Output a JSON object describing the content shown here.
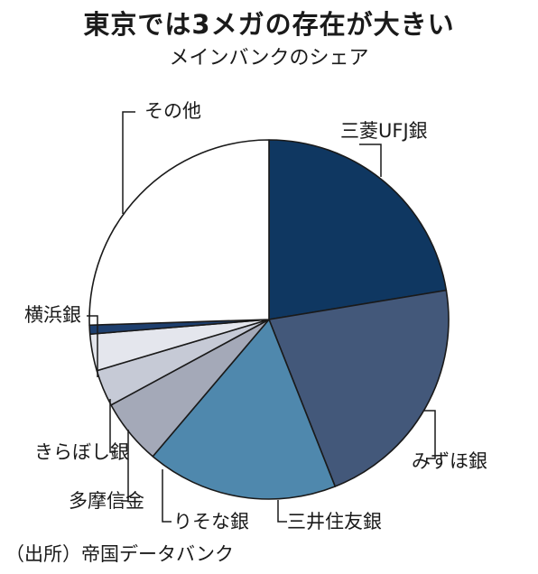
{
  "header": {
    "title": "東京では3メガの存在が大きい",
    "subtitle": "メインバンクのシェア"
  },
  "source": "（出所）帝国データバンク",
  "chart_data": {
    "type": "pie",
    "title": "東京では3メガの存在が大きい",
    "subtitle": "メインバンクのシェア",
    "start_angle": "12 o'clock",
    "direction": "clockwise",
    "slices": [
      {
        "label": "三菱UFJ銀",
        "value": 22.4,
        "color": "#0f3761"
      },
      {
        "label": "みずほ銀",
        "value": 21.6,
        "color": "#43587a"
      },
      {
        "label": "三井住友銀",
        "value": 17.2,
        "color": "#4f88ad"
      },
      {
        "label": "りそな銀",
        "value": 5.9,
        "color": "#a4a9b8"
      },
      {
        "label": "多摩信金",
        "value": 3.3,
        "color": "#c6cad6"
      },
      {
        "label": "きらぼし銀",
        "value": 3.3,
        "color": "#e4e6ed"
      },
      {
        "label": "横浜銀",
        "value": 0.8,
        "color": "#1e3f6e"
      },
      {
        "label": "その他",
        "value": 25.5,
        "color": "#ffffff"
      }
    ]
  }
}
